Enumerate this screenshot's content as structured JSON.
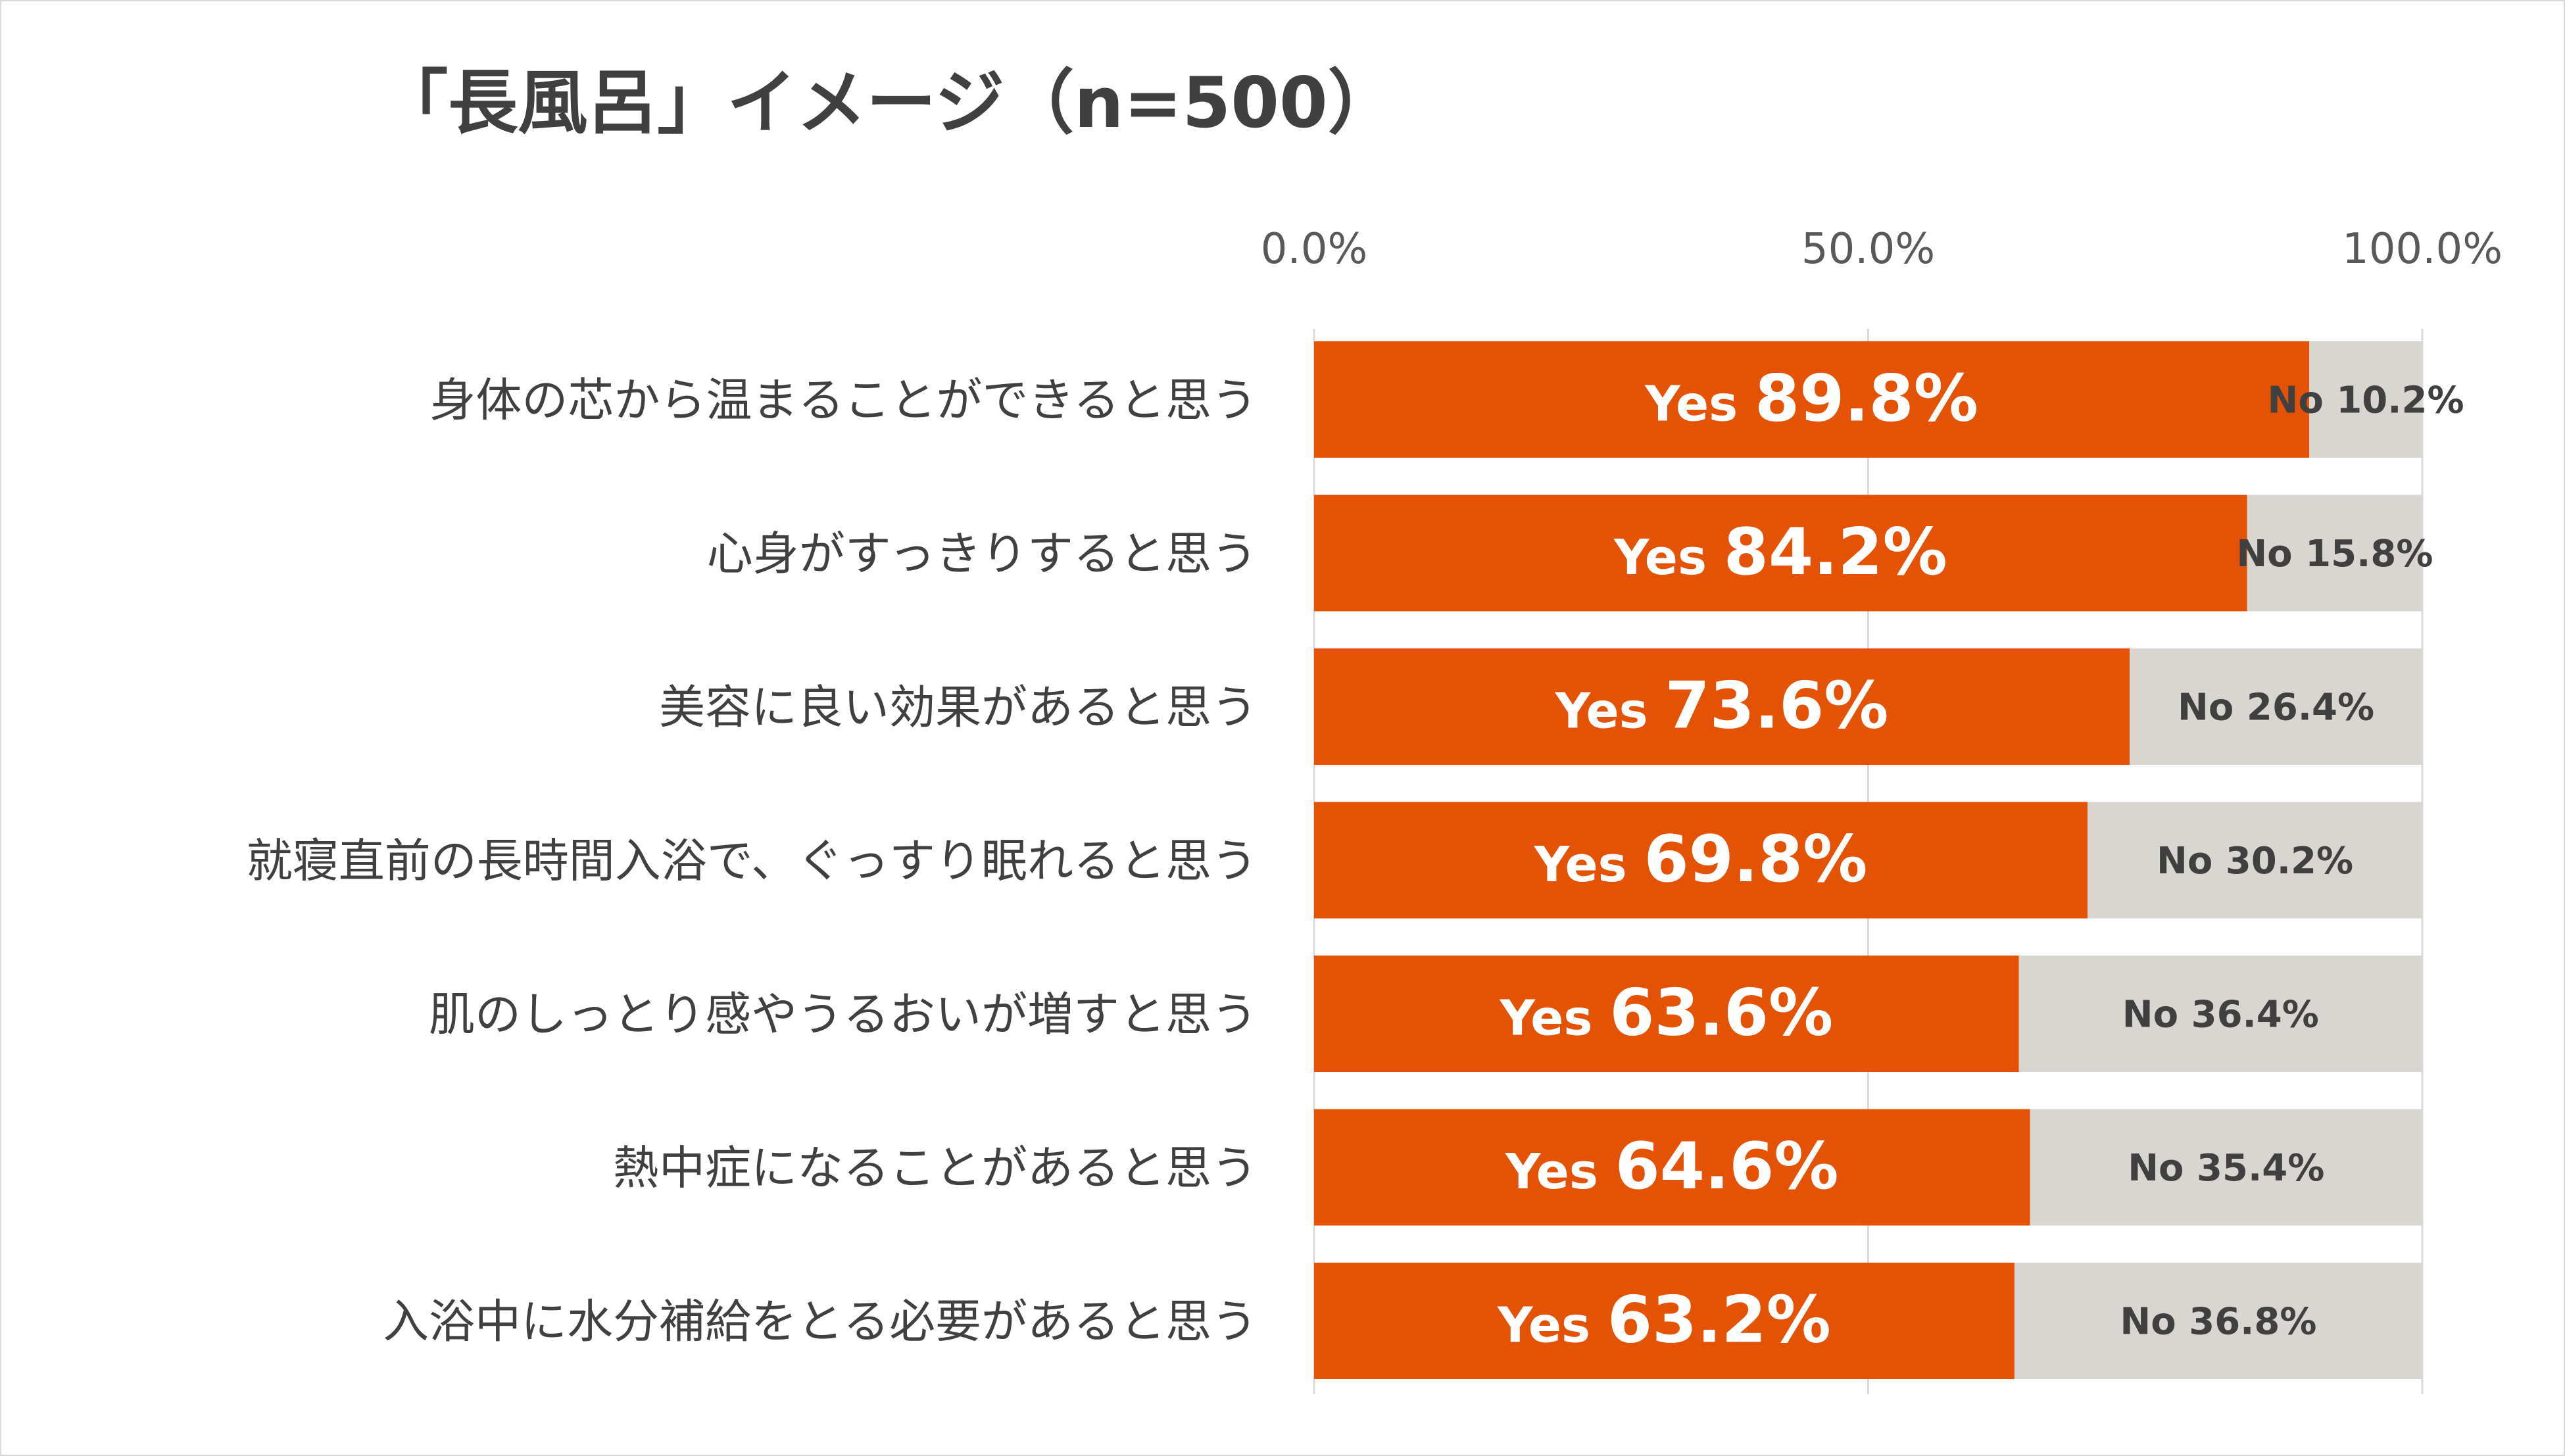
{
  "chart_data": {
    "type": "bar",
    "orientation": "horizontal",
    "stacked": true,
    "title": "「長風呂」イメージ（n=500）",
    "x_ticks": [
      "0.0%",
      "50.0%",
      "100.0%"
    ],
    "xlim": [
      0,
      100
    ],
    "axis_position": "top",
    "grid": true,
    "categories": [
      "身体の芯から温まることができると思う",
      "心身がすっきりすると思う",
      "美容に良い効果があると思う",
      "就寝直前の長時間入浴で、ぐっすり眠れると思う",
      "肌のしっとり感やうるおいが増すと思う",
      "熱中症になることがあると思う",
      "入浴中に水分補給をとる必要があると思う"
    ],
    "series": [
      {
        "name": "Yes",
        "color": "#E35205",
        "values": [
          89.8,
          84.2,
          73.6,
          69.8,
          63.6,
          64.6,
          63.2
        ],
        "labels": [
          "89.8%",
          "84.2%",
          "73.6%",
          "69.8%",
          "63.6%",
          "64.6%",
          "63.2%"
        ]
      },
      {
        "name": "No",
        "color": "#D9D5D0",
        "values": [
          10.2,
          15.8,
          26.4,
          30.2,
          36.4,
          35.4,
          36.8
        ],
        "labels": [
          "10.2%",
          "15.8%",
          "26.4%",
          "30.2%",
          "36.4%",
          "35.4%",
          "36.8%"
        ]
      }
    ]
  }
}
